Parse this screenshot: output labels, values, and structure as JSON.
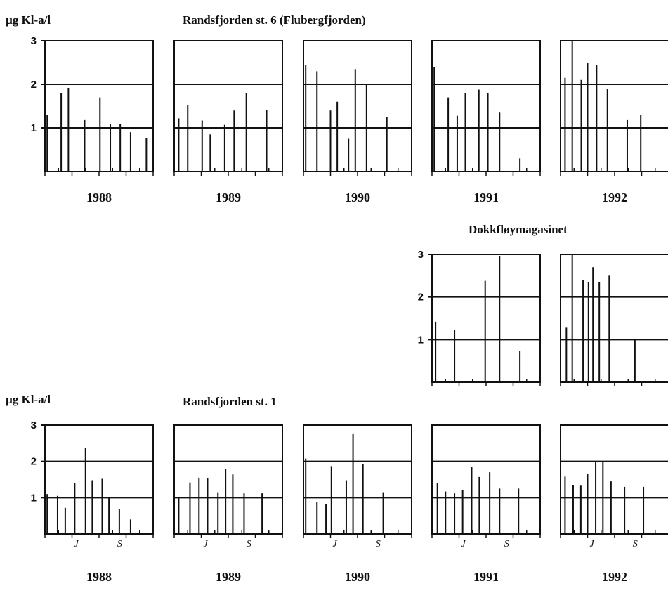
{
  "labels": {
    "ylabel_top": "µg Kl-a/l",
    "title_top": "Randsfjorden st. 6 (Flubergfjorden)",
    "title_mid": "Dokkfløymagasinet",
    "ylabel_bottom": "µg Kl-a/l",
    "title_bottom": "Randsfjorden st. 1"
  },
  "chart_data": [
    {
      "type": "bar",
      "panel": "st6-1988",
      "year": "1988",
      "ylim": [
        0,
        3
      ],
      "yticks": [
        1,
        2,
        3
      ],
      "grid_y": [
        1,
        2
      ],
      "x": [
        0.05,
        0.36,
        0.52,
        0.88,
        1.22,
        1.45,
        1.67,
        1.9,
        2.25
      ],
      "values": [
        1.3,
        1.8,
        1.92,
        1.18,
        1.7,
        1.08,
        1.08,
        0.9,
        0.77
      ]
    },
    {
      "type": "bar",
      "panel": "st6-1989",
      "year": "1989",
      "ylim": [
        0,
        3
      ],
      "x": [
        0.1,
        0.3,
        0.62,
        0.8,
        1.12,
        1.33,
        1.6,
        2.05
      ],
      "values": [
        1.22,
        1.53,
        1.17,
        0.85,
        1.07,
        1.4,
        1.8,
        1.42
      ]
    },
    {
      "type": "bar",
      "panel": "st6-1990",
      "year": "1990",
      "ylim": [
        0,
        3
      ],
      "x": [
        0.05,
        0.3,
        0.6,
        0.75,
        1.0,
        1.15,
        1.4,
        1.85
      ],
      "values": [
        2.45,
        2.3,
        1.4,
        1.6,
        0.75,
        2.35,
        2.0,
        1.25
      ]
    },
    {
      "type": "bar",
      "panel": "st6-1991",
      "year": "1991",
      "ylim": [
        0,
        3
      ],
      "x": [
        0.05,
        0.36,
        0.56,
        0.74,
        1.04,
        1.24,
        1.5,
        1.95
      ],
      "values": [
        2.4,
        1.7,
        1.28,
        1.8,
        1.88,
        1.8,
        1.35,
        0.3
      ]
    },
    {
      "type": "bar",
      "panel": "st6-1992",
      "year": "1992",
      "ylim": [
        0,
        3
      ],
      "x": [
        0.1,
        0.26,
        0.46,
        0.6,
        0.8,
        1.04,
        1.48,
        1.78
      ],
      "values": [
        2.15,
        3.0,
        2.1,
        2.5,
        2.45,
        1.9,
        1.18,
        1.3
      ]
    },
    {
      "type": "bar",
      "panel": "dokk-1991",
      "year": "",
      "ylim": [
        0,
        3
      ],
      "yticks": [
        1,
        2,
        3
      ],
      "grid_y": [
        1,
        2
      ],
      "x": [
        0.08,
        0.5,
        1.18,
        1.5,
        1.95
      ],
      "values": [
        1.42,
        1.22,
        2.38,
        2.95,
        0.73
      ]
    },
    {
      "type": "bar",
      "panel": "dokk-1992",
      "year": "",
      "ylim": [
        0,
        3
      ],
      "x": [
        0.13,
        0.26,
        0.5,
        0.62,
        0.72,
        0.86,
        1.08,
        1.65
      ],
      "values": [
        1.28,
        3.0,
        2.4,
        2.35,
        2.7,
        2.35,
        2.5,
        1.0
      ]
    },
    {
      "type": "bar",
      "panel": "st1-1988",
      "year": "1988",
      "ylim": [
        0,
        3
      ],
      "yticks": [
        1,
        2,
        3
      ],
      "grid_y": [
        1,
        2
      ],
      "x": [
        0.05,
        0.28,
        0.45,
        0.66,
        0.9,
        1.05,
        1.27,
        1.42,
        1.65,
        1.9
      ],
      "values": [
        1.1,
        1.05,
        0.72,
        1.4,
        2.38,
        1.48,
        1.52,
        1.0,
        0.68,
        0.4
      ],
      "month_ticks": [
        "J",
        "S"
      ]
    },
    {
      "type": "bar",
      "panel": "st1-1989",
      "year": "1989",
      "ylim": [
        0,
        3
      ],
      "x": [
        0.1,
        0.35,
        0.55,
        0.74,
        0.97,
        1.14,
        1.3,
        1.55,
        1.95
      ],
      "values": [
        1.0,
        1.42,
        1.55,
        1.53,
        1.15,
        1.8,
        1.64,
        1.12,
        1.12
      ],
      "month_ticks": [
        "J",
        "S"
      ]
    },
    {
      "type": "bar",
      "panel": "st1-1990",
      "year": "1990",
      "ylim": [
        0,
        3
      ],
      "x": [
        0.05,
        0.3,
        0.5,
        0.62,
        0.95,
        1.1,
        1.32,
        1.77
      ],
      "values": [
        2.08,
        0.88,
        0.82,
        1.87,
        1.48,
        2.75,
        1.93,
        1.15
      ],
      "month_ticks": [
        "J",
        "S"
      ]
    },
    {
      "type": "bar",
      "panel": "st1-1991",
      "year": "1991",
      "ylim": [
        0,
        3
      ],
      "x": [
        0.12,
        0.3,
        0.5,
        0.68,
        0.88,
        1.05,
        1.28,
        1.5,
        1.92
      ],
      "values": [
        1.4,
        1.17,
        1.12,
        1.22,
        1.85,
        1.57,
        1.7,
        1.25,
        1.25
      ],
      "month_ticks": [
        "J",
        "S"
      ]
    },
    {
      "type": "bar",
      "panel": "st1-1992",
      "year": "1992",
      "ylim": [
        0,
        3
      ],
      "x": [
        0.1,
        0.28,
        0.45,
        0.6,
        0.78,
        0.94,
        1.12,
        1.42,
        1.84
      ],
      "values": [
        1.58,
        1.35,
        1.33,
        1.65,
        2.0,
        2.0,
        1.45,
        1.3,
        1.3
      ],
      "month_ticks": [
        "J",
        "S"
      ]
    }
  ]
}
